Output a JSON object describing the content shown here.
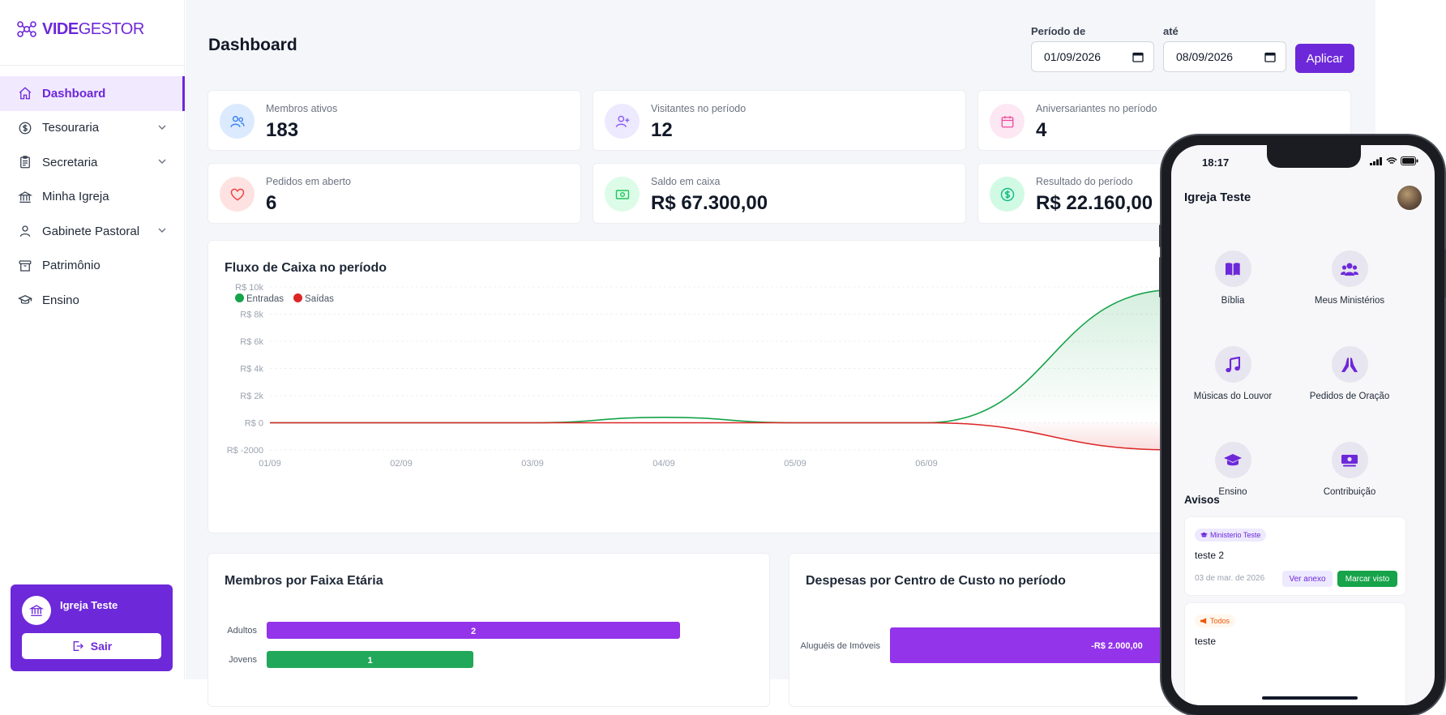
{
  "brand": {
    "name_bold": "VIDE",
    "name_light": "GESTOR",
    "accent": "#6d28d9"
  },
  "sidebar": {
    "items": [
      {
        "label": "Dashboard",
        "icon": "home-icon",
        "active": true
      },
      {
        "label": "Tesouraria",
        "icon": "dollar-circle-icon",
        "has_submenu": true
      },
      {
        "label": "Secretaria",
        "icon": "clipboard-icon",
        "has_submenu": true
      },
      {
        "label": "Minha Igreja",
        "icon": "bank-icon"
      },
      {
        "label": "Gabinete Pastoral",
        "icon": "user-icon",
        "has_submenu": true
      },
      {
        "label": "Patrimônio",
        "icon": "archive-icon"
      },
      {
        "label": "Ensino",
        "icon": "graduation-cap-icon"
      }
    ],
    "user_card": {
      "name": "Igreja Teste",
      "logout_label": "Sair"
    }
  },
  "header": {
    "title": "Dashboard",
    "period_from_label": "Período de",
    "period_from_value": "01/09/2026",
    "period_to_label": "até",
    "period_to_value": "08/09/2026",
    "apply_label": "Aplicar"
  },
  "stats": [
    {
      "label": "Membros ativos",
      "value": "183",
      "icon": "users-icon",
      "color": "#3b82f6"
    },
    {
      "label": "Visitantes no período",
      "value": "12",
      "icon": "user-plus-icon",
      "color": "#8b5cf6"
    },
    {
      "label": "Aniversariantes no período",
      "value": "4",
      "icon": "calendar-icon",
      "color": "#ec4899"
    },
    {
      "label": "Pedidos em aberto",
      "value": "6",
      "icon": "heart-icon",
      "color": "#ef4444"
    },
    {
      "label": "Saldo em caixa",
      "value": "R$ 67.300,00",
      "icon": "cash-icon",
      "color": "#22c55e"
    },
    {
      "label": "Resultado do período",
      "value": "R$ 22.160,00",
      "icon": "dollar-circle-icon",
      "color": "#10b981"
    }
  ],
  "cashflow": {
    "title": "Fluxo de Caixa no período",
    "chart_data": {
      "type": "line",
      "title": "Fluxo de Caixa no período",
      "x": [
        "01/09",
        "02/09",
        "03/09",
        "04/09",
        "05/09",
        "06/09"
      ],
      "y_ticks": [
        "R$ 10k",
        "R$ 8k",
        "R$ 6k",
        "R$ 4k",
        "R$ 2k",
        "R$ 0",
        "R$ -2000"
      ],
      "ylim": [
        -2000,
        10000
      ],
      "series": [
        {
          "name": "Entradas",
          "color": "#16a34a",
          "values": [
            0,
            0,
            0,
            400,
            0,
            0,
            9800
          ]
        },
        {
          "name": "Saídas",
          "color": "#dc2626",
          "values": [
            0,
            0,
            0,
            0,
            0,
            0,
            -2000
          ]
        }
      ],
      "x_values": [
        0,
        1,
        2,
        3,
        4,
        5,
        6.9
      ]
    }
  },
  "age_panel": {
    "title": "Membros por Faixa Etária",
    "chart_data": {
      "type": "bar",
      "categories": [
        "Adultos",
        "Jovens"
      ],
      "values": [
        2,
        1
      ],
      "colors": [
        "#9333ea",
        "#22a85a"
      ],
      "xlim": [
        0,
        2
      ]
    }
  },
  "expense_panel": {
    "title": "Despesas por Centro de Custo no período",
    "chart_data": {
      "type": "bar",
      "categories": [
        "Aluguéis de Imóveis"
      ],
      "values": [
        -2000
      ],
      "value_labels": [
        "-R$ 2.000,00"
      ],
      "colors": [
        "#9333ea"
      ]
    }
  },
  "phone": {
    "time": "18:17",
    "title": "Igreja Teste",
    "tiles": [
      {
        "label": "Bíblia",
        "icon": "book-icon"
      },
      {
        "label": "Meus Ministérios",
        "icon": "group-icon"
      },
      {
        "label": "Músicas do Louvor",
        "icon": "music-icon"
      },
      {
        "label": "Pedidos de Oração",
        "icon": "praying-hands-icon"
      },
      {
        "label": "Ensino",
        "icon": "graduation-cap-icon"
      },
      {
        "label": "Contribuição",
        "icon": "money-icon"
      }
    ],
    "avisos_title": "Avisos",
    "notices": [
      {
        "badge": "Ministerio Teste",
        "text": "teste 2",
        "date": "03 de mar. de 2026",
        "attach_label": "Ver anexo",
        "seen_label": "Marcar visto"
      },
      {
        "badge": "Todos",
        "text": "teste"
      }
    ]
  }
}
